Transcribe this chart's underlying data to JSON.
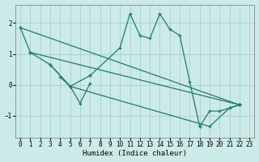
{
  "xlabel": "Humidex (Indice chaleur)",
  "background_color": "#cceae8",
  "grid_color": "#aad4d2",
  "line_color": "#1f7a70",
  "xlim": [
    -0.5,
    23.5
  ],
  "ylim": [
    -1.7,
    2.6
  ],
  "xticks": [
    0,
    1,
    2,
    3,
    4,
    5,
    6,
    7,
    8,
    9,
    10,
    11,
    12,
    13,
    14,
    15,
    16,
    17,
    18,
    19,
    20,
    21,
    22,
    23
  ],
  "yticks": [
    -1,
    0,
    1,
    2
  ],
  "series": [
    {
      "x": [
        0,
        1
      ],
      "y": [
        1.85,
        1.05
      ]
    },
    {
      "x": [
        1,
        3,
        5,
        7
      ],
      "y": [
        1.05,
        0.65,
        -0.05,
        0.3
      ]
    },
    {
      "x": [
        4,
        5,
        6,
        7
      ],
      "y": [
        0.25,
        -0.05,
        -0.6,
        0.05
      ]
    },
    {
      "x": [
        7,
        10,
        11,
        12,
        13,
        14,
        15,
        16,
        17,
        18
      ],
      "y": [
        0.3,
        1.2,
        2.3,
        1.6,
        1.5,
        2.3,
        1.8,
        1.6,
        0.1,
        -1.35
      ]
    },
    {
      "x": [
        18,
        19,
        20,
        21,
        22
      ],
      "y": [
        -1.35,
        -0.85,
        -0.85,
        -0.75,
        -0.65
      ]
    },
    {
      "x": [
        0,
        22
      ],
      "y": [
        1.85,
        -0.65
      ]
    },
    {
      "x": [
        1,
        22
      ],
      "y": [
        1.05,
        -0.65
      ]
    },
    {
      "x": [
        3,
        5,
        19,
        21,
        22
      ],
      "y": [
        0.65,
        -0.05,
        -1.35,
        -0.75,
        -0.65
      ]
    }
  ]
}
